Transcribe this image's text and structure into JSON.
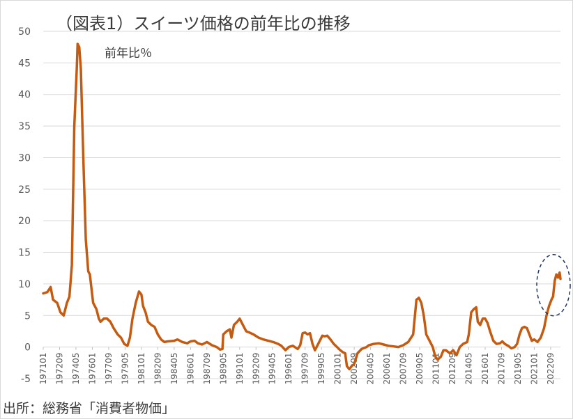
{
  "chart_data": {
    "type": "line",
    "title": "（図表1）スイーツ価格の前年比の推移",
    "annotation": "前年比％",
    "source": "出所：総務省「消費者物価」",
    "ylim": [
      -5,
      50
    ],
    "yticks": [
      -5,
      0,
      5,
      10,
      15,
      20,
      25,
      30,
      35,
      40,
      45,
      50
    ],
    "grid": true,
    "x_start": "1971-01",
    "x_end": "2023-09",
    "xtick_labels": [
      "197101",
      "197209",
      "197405",
      "197601",
      "197709",
      "197905",
      "198101",
      "198209",
      "198405",
      "198601",
      "198709",
      "198905",
      "199101",
      "199209",
      "199405",
      "199601",
      "199709",
      "199905",
      "200101",
      "200209",
      "200405",
      "200601",
      "200709",
      "200905",
      "201101",
      "201209",
      "201405",
      "201601",
      "201709",
      "201905",
      "202101",
      "202209"
    ],
    "series": [
      {
        "color": "#c55a11",
        "points": [
          [
            "1971-01",
            8.5
          ],
          [
            "1971-06",
            8.7
          ],
          [
            "1971-10",
            9.5
          ],
          [
            "1972-01",
            7.5
          ],
          [
            "1972-06",
            7.0
          ],
          [
            "1972-10",
            5.5
          ],
          [
            "1973-02",
            5.0
          ],
          [
            "1973-06",
            7.0
          ],
          [
            "1973-09",
            8.0
          ],
          [
            "1973-12",
            13.0
          ],
          [
            "1974-03",
            35.0
          ],
          [
            "1974-06",
            44.0
          ],
          [
            "1974-07",
            48.0
          ],
          [
            "1974-09",
            47.5
          ],
          [
            "1974-11",
            44.0
          ],
          [
            "1975-02",
            30.0
          ],
          [
            "1975-05",
            17.0
          ],
          [
            "1975-08",
            12.0
          ],
          [
            "1975-10",
            11.5
          ],
          [
            "1976-02",
            7.0
          ],
          [
            "1976-06",
            6.0
          ],
          [
            "1976-09",
            4.5
          ],
          [
            "1976-11",
            4.0
          ],
          [
            "1977-03",
            4.5
          ],
          [
            "1977-07",
            4.5
          ],
          [
            "1977-11",
            4.0
          ],
          [
            "1978-03",
            3.0
          ],
          [
            "1978-08",
            2.0
          ],
          [
            "1978-12",
            1.5
          ],
          [
            "1979-04",
            0.5
          ],
          [
            "1979-08",
            0.2
          ],
          [
            "1979-11",
            1.5
          ],
          [
            "1980-02",
            4.5
          ],
          [
            "1980-06",
            7.0
          ],
          [
            "1980-10",
            8.8
          ],
          [
            "1981-01",
            8.3
          ],
          [
            "1981-03",
            6.5
          ],
          [
            "1981-06",
            5.5
          ],
          [
            "1981-09",
            4.0
          ],
          [
            "1982-01",
            3.5
          ],
          [
            "1982-05",
            3.2
          ],
          [
            "1982-09",
            2.0
          ],
          [
            "1983-01",
            1.2
          ],
          [
            "1983-05",
            0.8
          ],
          [
            "1983-09",
            0.9
          ],
          [
            "1984-05",
            1.0
          ],
          [
            "1984-09",
            1.2
          ],
          [
            "1985-03",
            0.8
          ],
          [
            "1985-09",
            0.6
          ],
          [
            "1986-01",
            0.9
          ],
          [
            "1986-06",
            1.0
          ],
          [
            "1986-10",
            0.6
          ],
          [
            "1987-03",
            0.4
          ],
          [
            "1987-09",
            0.8
          ],
          [
            "1988-03",
            0.3
          ],
          [
            "1988-09",
            0.0
          ],
          [
            "1989-01",
            -0.4
          ],
          [
            "1989-04",
            -0.3
          ],
          [
            "1989-05",
            2.0
          ],
          [
            "1989-09",
            2.5
          ],
          [
            "1990-01",
            2.8
          ],
          [
            "1990-03",
            1.5
          ],
          [
            "1990-06",
            3.5
          ],
          [
            "1990-10",
            4.0
          ],
          [
            "1991-01",
            4.5
          ],
          [
            "1991-05",
            3.5
          ],
          [
            "1991-09",
            2.5
          ],
          [
            "1992-01",
            2.3
          ],
          [
            "1992-06",
            2.0
          ],
          [
            "1992-12",
            1.5
          ],
          [
            "1993-06",
            1.2
          ],
          [
            "1993-12",
            1.0
          ],
          [
            "1994-06",
            0.8
          ],
          [
            "1994-12",
            0.5
          ],
          [
            "1995-04",
            0.2
          ],
          [
            "1995-09",
            -0.5
          ],
          [
            "1996-01",
            0.0
          ],
          [
            "1996-06",
            0.2
          ],
          [
            "1996-12",
            -0.3
          ],
          [
            "1997-03",
            0.3
          ],
          [
            "1997-06",
            2.2
          ],
          [
            "1997-09",
            2.3
          ],
          [
            "1997-12",
            2.0
          ],
          [
            "1998-03",
            2.2
          ],
          [
            "1998-06",
            0.5
          ],
          [
            "1998-09",
            -0.5
          ],
          [
            "1999-01",
            0.5
          ],
          [
            "1999-06",
            1.8
          ],
          [
            "1999-09",
            1.7
          ],
          [
            "1999-12",
            1.8
          ],
          [
            "2000-04",
            1.2
          ],
          [
            "2000-08",
            0.5
          ],
          [
            "2000-12",
            0.0
          ],
          [
            "2001-04",
            -0.5
          ],
          [
            "2001-07",
            -0.8
          ],
          [
            "2001-10",
            -1.0
          ],
          [
            "2001-12",
            -3.0
          ],
          [
            "2002-03",
            -3.5
          ],
          [
            "2002-06",
            -3.0
          ],
          [
            "2002-09",
            -2.7
          ],
          [
            "2003-01",
            -1.0
          ],
          [
            "2003-06",
            -0.3
          ],
          [
            "2003-12",
            0.0
          ],
          [
            "2004-03",
            0.3
          ],
          [
            "2004-09",
            0.5
          ],
          [
            "2005-03",
            0.6
          ],
          [
            "2005-09",
            0.4
          ],
          [
            "2006-03",
            0.2
          ],
          [
            "2006-09",
            0.1
          ],
          [
            "2007-03",
            0.0
          ],
          [
            "2007-09",
            0.3
          ],
          [
            "2008-03",
            0.8
          ],
          [
            "2008-09",
            2.0
          ],
          [
            "2009-01",
            7.5
          ],
          [
            "2009-04",
            7.8
          ],
          [
            "2009-07",
            7.0
          ],
          [
            "2009-10",
            5.0
          ],
          [
            "2010-01",
            2.0
          ],
          [
            "2010-05",
            1.0
          ],
          [
            "2010-09",
            0.0
          ],
          [
            "2010-12",
            -1.5
          ],
          [
            "2011-03",
            -2.0
          ],
          [
            "2011-07",
            -1.5
          ],
          [
            "2011-10",
            -0.5
          ],
          [
            "2012-01",
            -0.5
          ],
          [
            "2012-06",
            -1.0
          ],
          [
            "2012-10",
            -0.5
          ],
          [
            "2013-02",
            -1.3
          ],
          [
            "2013-06",
            0.0
          ],
          [
            "2013-10",
            0.5
          ],
          [
            "2014-03",
            0.8
          ],
          [
            "2014-05",
            2.0
          ],
          [
            "2014-08",
            5.5
          ],
          [
            "2014-11",
            6.0
          ],
          [
            "2015-02",
            6.3
          ],
          [
            "2015-04",
            4.0
          ],
          [
            "2015-07",
            3.5
          ],
          [
            "2015-10",
            4.5
          ],
          [
            "2016-01",
            4.5
          ],
          [
            "2016-04",
            3.8
          ],
          [
            "2016-07",
            2.5
          ],
          [
            "2016-11",
            1.0
          ],
          [
            "2017-03",
            0.5
          ],
          [
            "2017-07",
            0.6
          ],
          [
            "2017-10",
            0.9
          ],
          [
            "2018-01",
            0.5
          ],
          [
            "2018-05",
            0.2
          ],
          [
            "2018-09",
            -0.2
          ],
          [
            "2019-01",
            0.0
          ],
          [
            "2019-04",
            0.5
          ],
          [
            "2019-07",
            2.0
          ],
          [
            "2019-10",
            3.0
          ],
          [
            "2020-01",
            3.2
          ],
          [
            "2020-04",
            3.0
          ],
          [
            "2020-07",
            2.0
          ],
          [
            "2020-10",
            1.0
          ],
          [
            "2021-01",
            1.2
          ],
          [
            "2021-05",
            0.8
          ],
          [
            "2021-09",
            1.5
          ],
          [
            "2022-01",
            3.0
          ],
          [
            "2022-04",
            5.0
          ],
          [
            "2022-07",
            6.5
          ],
          [
            "2022-10",
            7.5
          ],
          [
            "2022-12",
            8.0
          ],
          [
            "2023-02",
            10.5
          ],
          [
            "2023-04",
            11.5
          ],
          [
            "2023-06",
            11.0
          ],
          [
            "2023-08",
            11.8
          ],
          [
            "2023-09",
            10.8
          ]
        ]
      }
    ]
  }
}
